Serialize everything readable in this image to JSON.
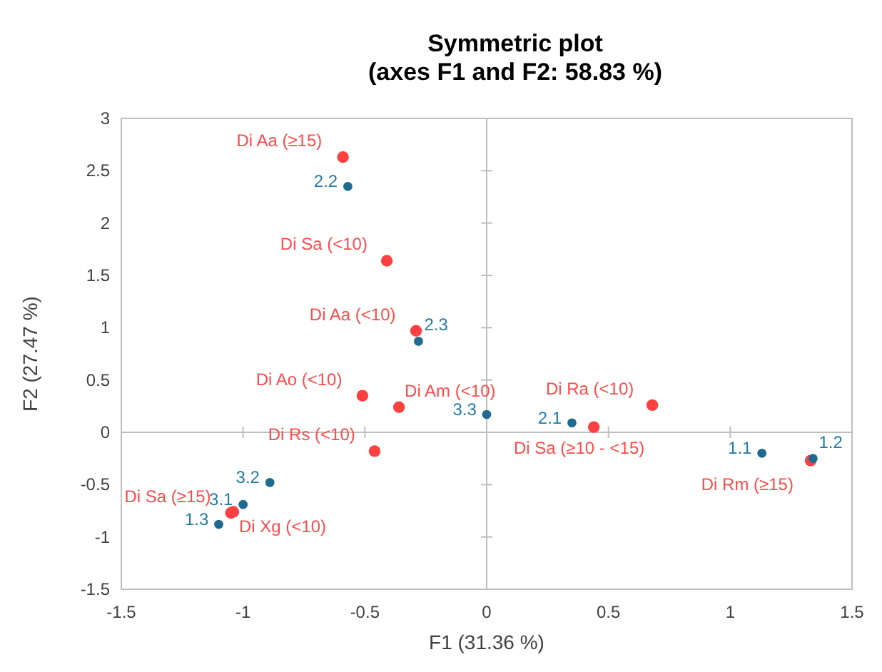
{
  "chart_data": {
    "type": "scatter",
    "title": "Symmetric plot",
    "subtitle": "(axes F1 and F2: 58.83 %)",
    "xlabel": "F1 (31.36 %)",
    "ylabel": "F2 (27.47 %)",
    "xlim": [
      -1.5,
      1.5
    ],
    "xticks": [
      -1.5,
      -1,
      -0.5,
      0,
      0.5,
      1,
      1.5
    ],
    "ylim": [
      -1.5,
      3
    ],
    "yticks": [
      -1.5,
      -1,
      -0.5,
      0,
      0.5,
      1,
      1.5,
      2,
      2.5,
      3
    ],
    "marker": "circle",
    "series": [
      {
        "color": "#ff4040",
        "x": [
          -0.59,
          -0.41,
          -0.29,
          -0.51,
          -0.36,
          -0.46,
          -1.05,
          -1.04,
          0.68,
          0.44,
          1.33
        ],
        "values": [
          2.63,
          1.64,
          0.97,
          0.35,
          0.24,
          -0.18,
          -0.77,
          -0.76,
          0.26,
          0.05,
          -0.27
        ]
      },
      {
        "color": "#1f6b8f",
        "x": [
          -0.57,
          -0.28,
          0.0,
          0.35,
          1.13,
          1.34,
          -0.89,
          -1.0,
          -1.1
        ],
        "values": [
          2.35,
          0.87,
          0.17,
          0.09,
          -0.2,
          -0.25,
          -0.48,
          -0.69,
          -0.88
        ]
      }
    ],
    "annotations": [
      {
        "text": "Di Aa (≥15)",
        "x": -0.59,
        "y": 2.63
      },
      {
        "text": "Di Sa (<10)",
        "x": -0.41,
        "y": 1.64
      },
      {
        "text": "Di Aa (<10)",
        "x": -0.29,
        "y": 0.97
      },
      {
        "text": "Di Ao (<10)",
        "x": -0.51,
        "y": 0.35
      },
      {
        "text": "Di Am (<10)",
        "x": -0.36,
        "y": 0.24
      },
      {
        "text": "Di Rs (<10)",
        "x": -0.46,
        "y": -0.18
      },
      {
        "text": "Di Sa (≥15)",
        "x": -1.05,
        "y": -0.77
      },
      {
        "text": "Di Xg (<10)",
        "x": -1.04,
        "y": -0.76
      },
      {
        "text": "Di Ra (<10)",
        "x": 0.68,
        "y": 0.26
      },
      {
        "text": "Di Sa (≥10 - <15)",
        "x": 0.44,
        "y": 0.05
      },
      {
        "text": "Di Rm (≥15)",
        "x": 1.33,
        "y": -0.27
      },
      {
        "text": "2.2",
        "x": -0.57,
        "y": 2.35
      },
      {
        "text": "2.3",
        "x": -0.28,
        "y": 0.87
      },
      {
        "text": "3.3",
        "x": 0.0,
        "y": 0.17
      },
      {
        "text": "2.1",
        "x": 0.35,
        "y": 0.09
      },
      {
        "text": "1.1",
        "x": 1.13,
        "y": -0.2
      },
      {
        "text": "1.2",
        "x": 1.34,
        "y": -0.25
      },
      {
        "text": "3.2",
        "x": -0.89,
        "y": -0.48
      },
      {
        "text": "3.1",
        "x": -1.0,
        "y": -0.69
      },
      {
        "text": "1.3",
        "x": -1.1,
        "y": -0.88
      }
    ]
  }
}
